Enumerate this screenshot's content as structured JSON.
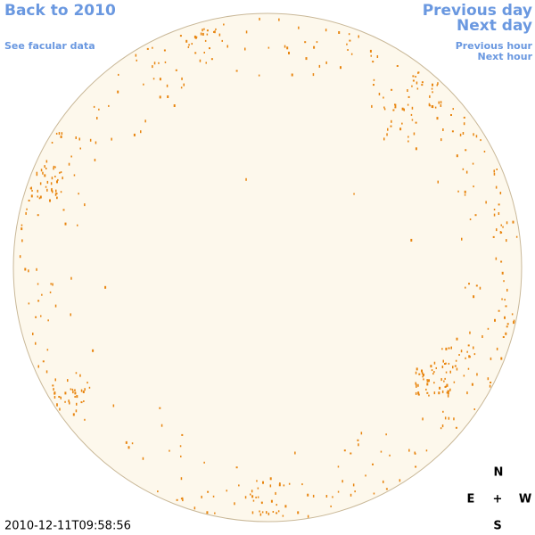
{
  "links": {
    "back": "Back to 2010",
    "facular": "See facular data",
    "previous_day": "Previous day",
    "next_day": "Next day",
    "previous_hour": "Previous hour",
    "next_hour": "Next hour"
  },
  "timestamp": "2010-12-11T09:58:56",
  "compass": {
    "north": "N",
    "east": "E",
    "center": "+",
    "west": "W",
    "south": "S"
  }
}
